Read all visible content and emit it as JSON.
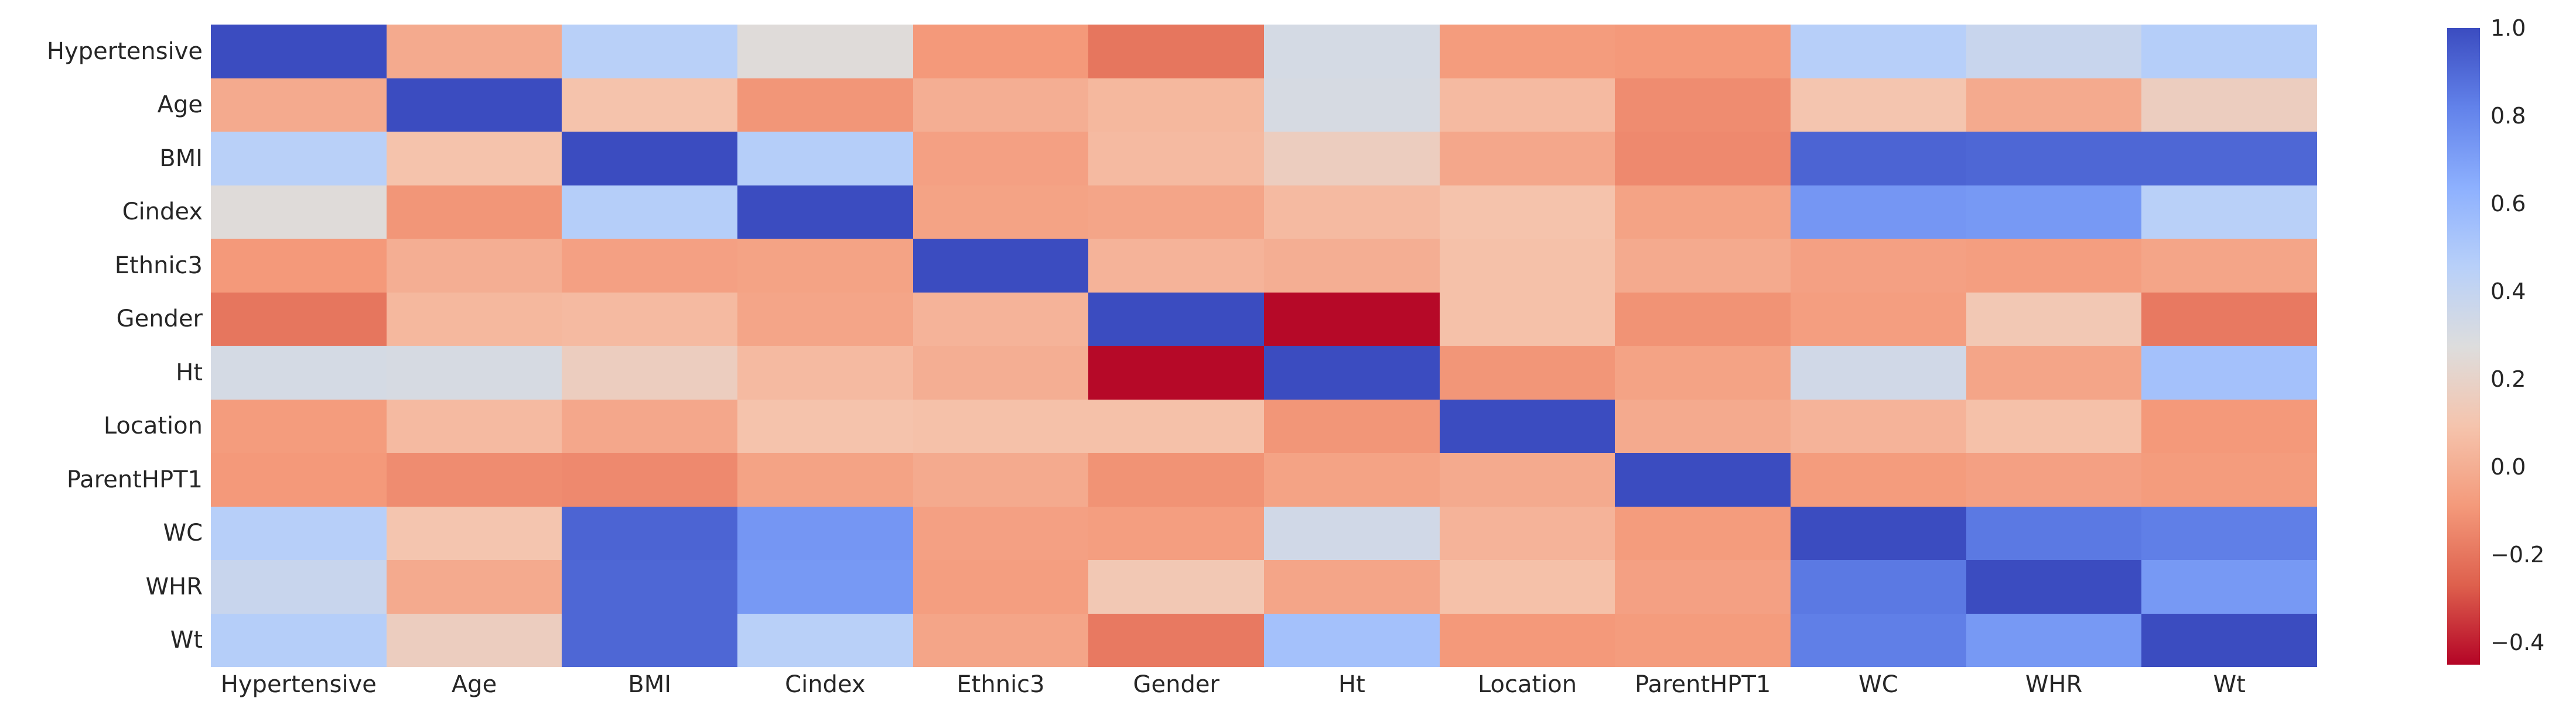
{
  "chart_data": {
    "type": "heatmap",
    "title": "",
    "xlabel": "",
    "ylabel": "",
    "grid": false,
    "legend_position": "right",
    "variables": [
      "Hypertensive",
      "Age",
      "BMI",
      "Cindex",
      "Ethnic3",
      "Gender",
      "Ht",
      "Location",
      "ParentHPT1",
      "WC",
      "WHR",
      "Wt"
    ],
    "matrix": [
      [
        1.0,
        -0.02,
        0.45,
        0.26,
        -0.09,
        -0.2,
        0.32,
        -0.08,
        -0.09,
        0.46,
        0.38,
        0.47
      ],
      [
        -0.02,
        1.0,
        0.09,
        -0.1,
        0.0,
        0.04,
        0.31,
        0.05,
        -0.13,
        0.1,
        -0.02,
        0.16
      ],
      [
        0.45,
        0.09,
        1.0,
        0.47,
        -0.06,
        0.05,
        0.16,
        -0.03,
        -0.14,
        0.92,
        0.91,
        0.91
      ],
      [
        0.26,
        -0.1,
        0.47,
        1.0,
        -0.05,
        -0.04,
        0.05,
        0.09,
        -0.05,
        0.74,
        0.73,
        0.45
      ],
      [
        -0.09,
        0.0,
        -0.06,
        -0.05,
        1.0,
        0.02,
        0.0,
        0.08,
        -0.02,
        -0.06,
        -0.07,
        -0.04
      ],
      [
        -0.2,
        0.04,
        0.05,
        -0.04,
        0.02,
        1.0,
        -0.44,
        0.08,
        -0.11,
        -0.07,
        0.12,
        -0.19
      ],
      [
        0.32,
        0.31,
        0.16,
        0.05,
        0.0,
        -0.44,
        1.0,
        -0.1,
        -0.05,
        0.34,
        -0.04,
        0.54
      ],
      [
        -0.08,
        0.05,
        -0.03,
        0.09,
        0.08,
        0.08,
        -0.1,
        1.0,
        -0.02,
        0.02,
        0.08,
        -0.09
      ],
      [
        -0.09,
        -0.13,
        -0.14,
        -0.05,
        -0.02,
        -0.11,
        -0.05,
        -0.02,
        1.0,
        -0.08,
        -0.06,
        -0.08
      ],
      [
        0.46,
        0.1,
        0.92,
        0.74,
        -0.06,
        -0.07,
        0.34,
        0.02,
        -0.08,
        1.0,
        0.85,
        0.83
      ],
      [
        0.38,
        -0.02,
        0.91,
        0.73,
        -0.07,
        0.12,
        -0.04,
        0.08,
        -0.06,
        0.85,
        1.0,
        0.73
      ],
      [
        0.47,
        0.16,
        0.91,
        0.45,
        -0.04,
        -0.19,
        0.54,
        -0.09,
        -0.08,
        0.83,
        0.73,
        1.0
      ]
    ],
    "colormap": {
      "name": "coolwarm_r",
      "vmin": -0.45,
      "vmax": 1.0,
      "high_color": "#3b4cc0",
      "mid_color": "#dddddd",
      "low_color": "#b40426",
      "stops": [
        "#3b4cc0",
        "#6282ea",
        "#8db0fe",
        "#b8d0f9",
        "#dddddd",
        "#f5c4ad",
        "#f49a7b",
        "#de604d",
        "#b40426"
      ]
    },
    "colorbar_ticks": [
      {
        "label": "1.0",
        "value": 1.0
      },
      {
        "label": "0.8",
        "value": 0.8
      },
      {
        "label": "0.6",
        "value": 0.6
      },
      {
        "label": "0.4",
        "value": 0.4
      },
      {
        "label": "0.2",
        "value": 0.2
      },
      {
        "label": "0.0",
        "value": 0.0
      },
      {
        "label": "−0.2",
        "value": -0.2
      },
      {
        "label": "−0.4",
        "value": -0.4
      }
    ]
  }
}
